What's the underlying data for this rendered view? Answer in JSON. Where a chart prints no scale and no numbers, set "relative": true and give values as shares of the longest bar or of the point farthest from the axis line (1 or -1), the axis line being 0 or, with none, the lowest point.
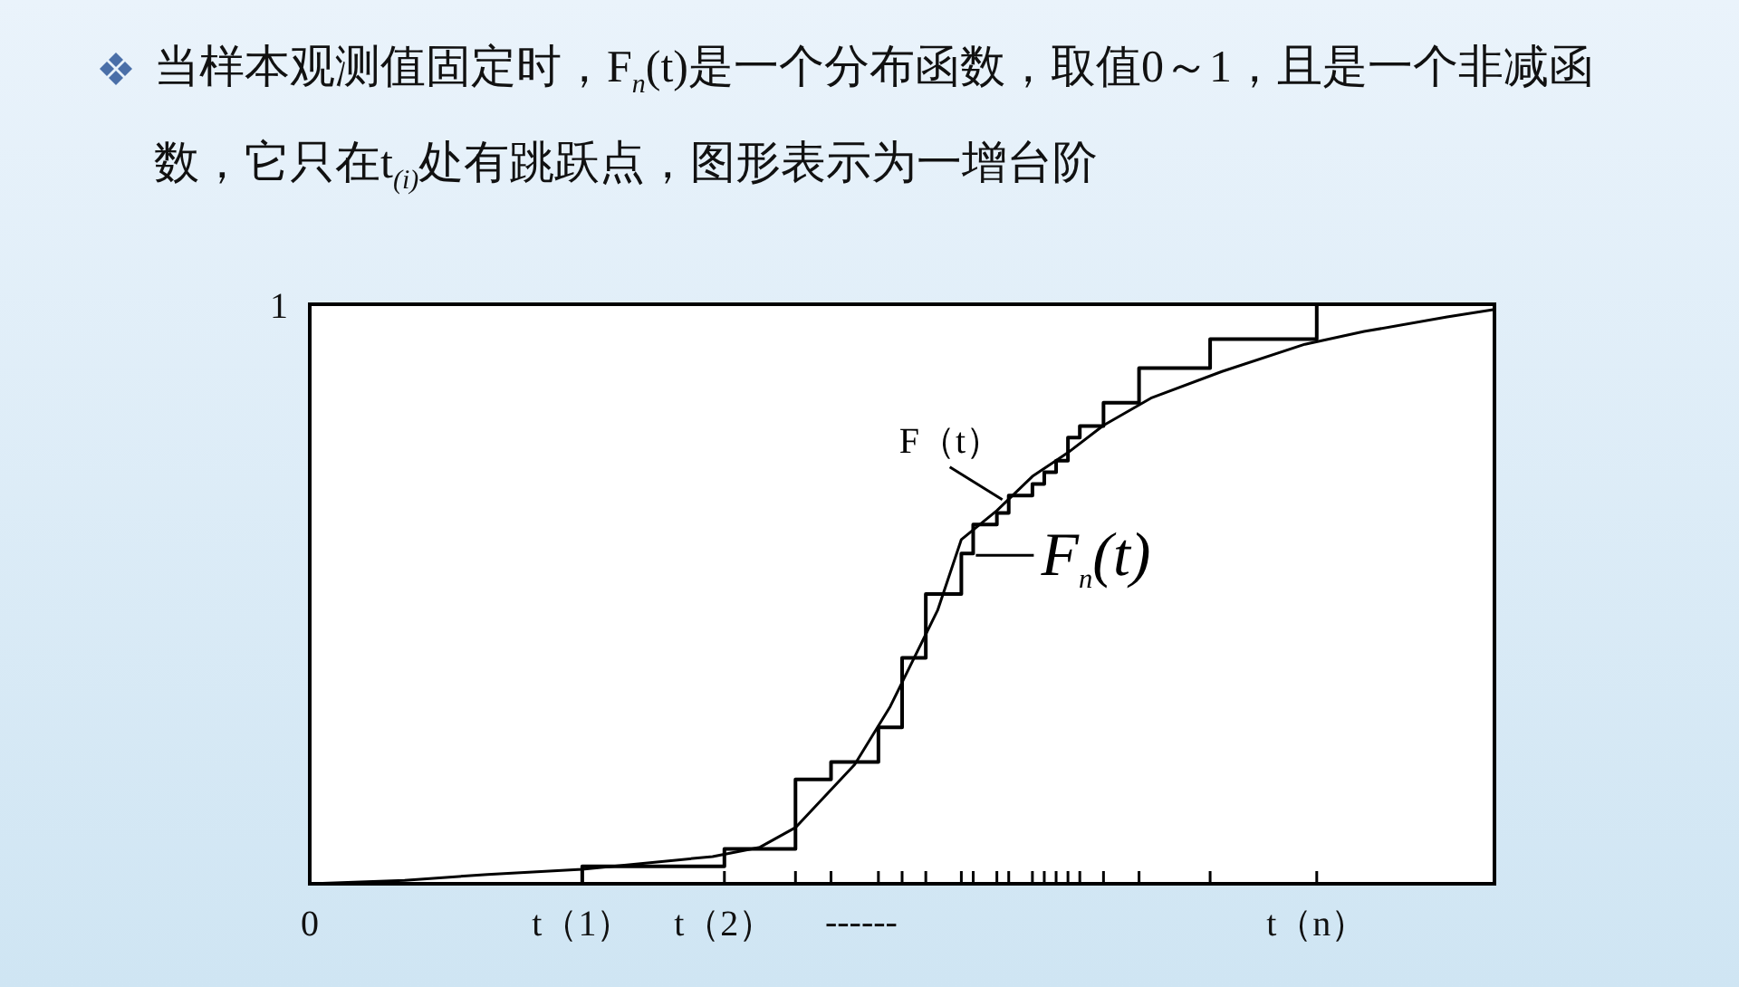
{
  "chart_data": {
    "type": "line",
    "relative": true,
    "title": "当样本观测值固定时，F$_{n}$(t)是一个分布函数，取值0～1，且是一个非减函数，它只在t$_{(i)}$处有跳跃点，图形表示为一增台阶",
    "categories": [
      "0",
      null,
      null,
      null,
      null,
      null,
      null,
      null,
      null,
      null,
      null,
      null,
      null,
      null,
      null,
      null,
      null,
      null,
      null,
      null,
      null,
      null,
      null,
      "t（1）",
      null,
      null,
      null,
      null,
      null,
      null,
      null,
      null,
      null,
      null,
      null,
      "t（2）",
      null,
      null,
      null,
      null,
      null,
      null,
      null,
      null,
      null,
      null,
      null,
      null,
      null,
      null,
      null,
      null,
      null,
      null,
      null,
      null,
      null,
      null,
      null,
      null,
      null,
      null,
      null,
      null,
      null,
      null,
      null,
      null,
      null,
      null,
      null,
      null,
      null,
      null,
      null,
      null,
      null,
      null,
      null,
      null,
      null,
      null,
      null,
      null,
      null,
      "t（n）",
      null,
      null,
      null,
      null,
      null,
      null,
      null,
      null,
      null,
      null,
      null,
      null,
      null,
      null,
      null
    ],
    "series": [
      {
        "name": "F$_{n}$(t)",
        "type": "step",
        "color": "#000000",
        "values": [
          0,
          null,
          null,
          null,
          null,
          null,
          null,
          null,
          null,
          null,
          null,
          null,
          null,
          null,
          null,
          null,
          null,
          null,
          null,
          null,
          null,
          null,
          null,
          0.03,
          null,
          null,
          null,
          null,
          null,
          null,
          null,
          null,
          null,
          null,
          null,
          0.06,
          null,
          null,
          null,
          null,
          null,
          0.18,
          null,
          null,
          0.21,
          null,
          null,
          null,
          0.27,
          null,
          0.39,
          null,
          0.5,
          null,
          null,
          0.57,
          0.62,
          null,
          0.64,
          0.67,
          null,
          0.69,
          0.71,
          0.73,
          0.77,
          0.79,
          null,
          0.83,
          null,
          null,
          0.89,
          null,
          null,
          null,
          null,
          null,
          0.94,
          null,
          null,
          null,
          null,
          null,
          null,
          null,
          null,
          1,
          null,
          null,
          null,
          null,
          null,
          null,
          null,
          null,
          null,
          null,
          null,
          null,
          null,
          null,
          1
        ]
      },
      {
        "name": "F（t）",
        "type": "line",
        "color": "#000000",
        "values": [
          0,
          null,
          null,
          null,
          null,
          null,
          null,
          null,
          0.006,
          null,
          null,
          null,
          null,
          null,
          null,
          0.016,
          null,
          null,
          null,
          null,
          null,
          null,
          null,
          0.025,
          null,
          null,
          null,
          null,
          null,
          null,
          null,
          null,
          null,
          null,
          0.047,
          null,
          null,
          null,
          0.063,
          null,
          null,
          0.097,
          null,
          null,
          null,
          null,
          0.206,
          null,
          null,
          0.306,
          null,
          null,
          null,
          0.472,
          null,
          0.594,
          null,
          null,
          0.644,
          null,
          null,
          0.703,
          null,
          null,
          0.744,
          null,
          null,
          0.791,
          null,
          null,
          null,
          0.838,
          null,
          null,
          null,
          null,
          null,
          0.884,
          null,
          null,
          null,
          null,
          null,
          null,
          0.931,
          null,
          null,
          null,
          null,
          0.953,
          null,
          null,
          null,
          null,
          null,
          null,
          0.978,
          null,
          null,
          null,
          0.991
        ]
      }
    ],
    "annotations": [
      "1",
      "------"
    ]
  }
}
